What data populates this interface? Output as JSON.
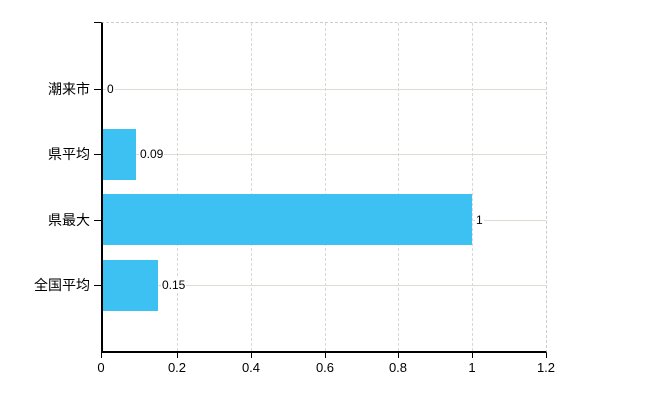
{
  "chart_data": {
    "type": "bar",
    "orientation": "horizontal",
    "title": "",
    "categories": [
      "潮来市",
      "県平均",
      "県最大",
      "全国平均"
    ],
    "values": [
      0,
      0.09,
      1,
      0.15
    ],
    "value_labels": [
      "0",
      "0.09",
      "1",
      "0.15"
    ],
    "x_ticks": [
      0,
      0.2,
      0.4,
      0.6,
      0.8,
      1,
      1.2
    ],
    "x_tick_labels": [
      "0",
      "0.2",
      "0.4",
      "0.6",
      "0.8",
      "1",
      "1.2"
    ],
    "xlim": [
      0,
      1.2
    ],
    "grid": true,
    "legend": false,
    "bar_color": "#3dc0f2",
    "axis_color": "#000000",
    "gridline_color": "#d9ded3",
    "border_color": "#c9cdc9",
    "background_color": "#ffffff"
  }
}
